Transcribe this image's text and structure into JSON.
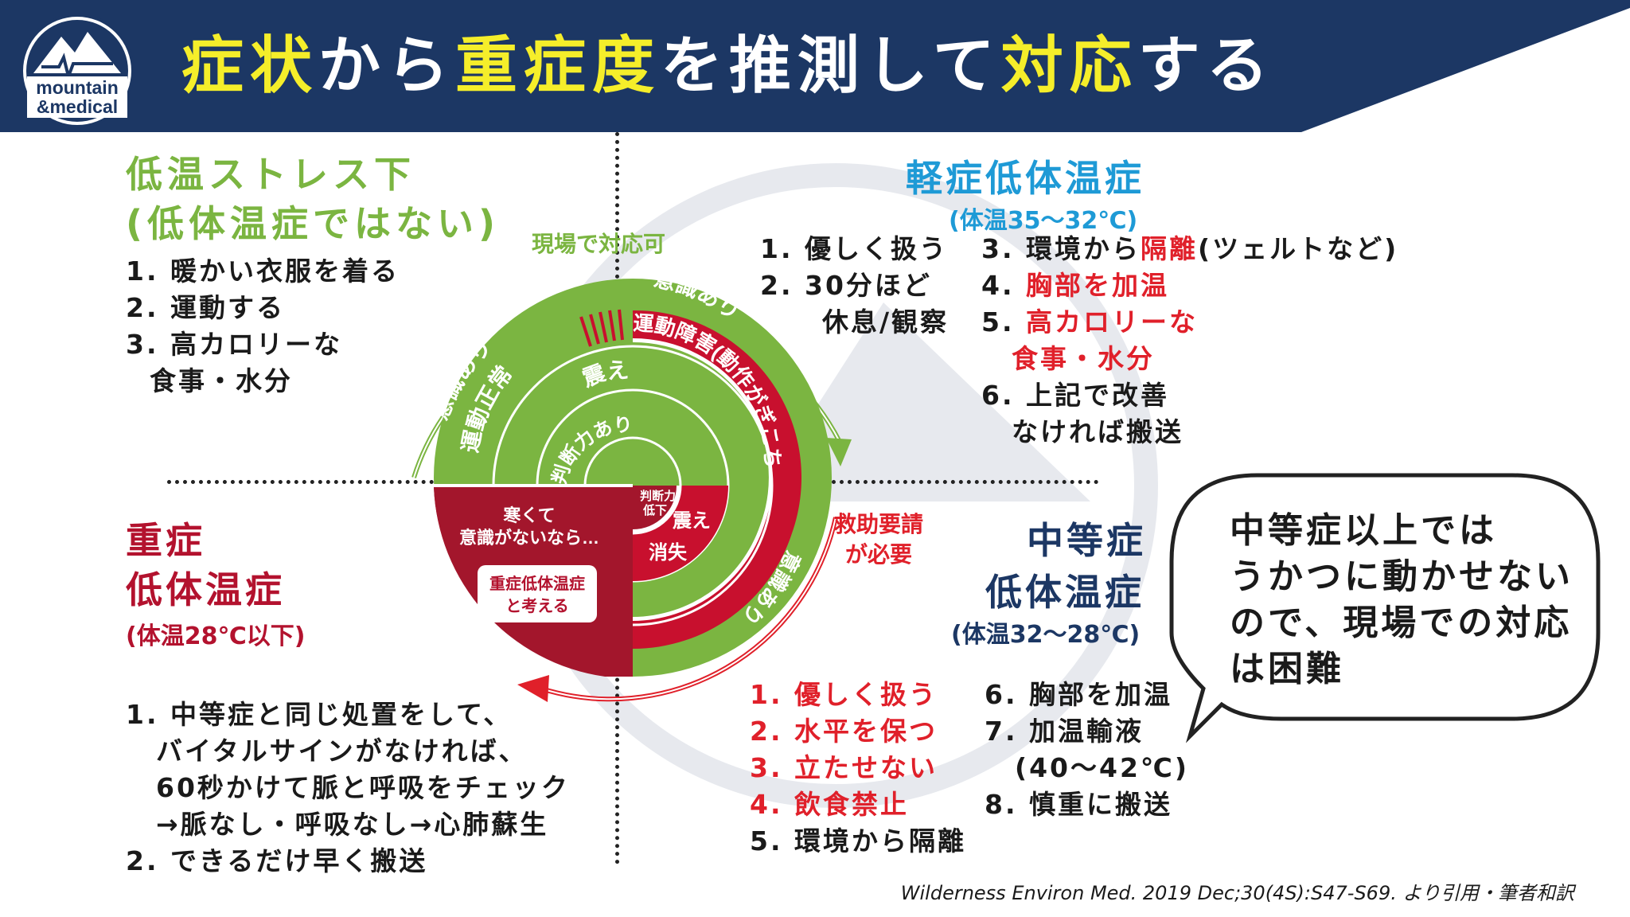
{
  "header": {
    "title_parts": [
      {
        "text": "症状",
        "hl": true
      },
      {
        "text": "から",
        "hl": false
      },
      {
        "text": "重症度",
        "hl": true
      },
      {
        "text": "を推測して",
        "hl": false
      },
      {
        "text": "対応",
        "hl": true
      },
      {
        "text": "する",
        "hl": false
      }
    ],
    "logo_line1": "mountain",
    "logo_line2": "&medical"
  },
  "colors": {
    "header_bg": "#1c3764",
    "title_highlight": "#f5ee2a",
    "green": "#7bb541",
    "blue": "#1e9ad6",
    "crimson": "#b3122e",
    "red": "#e0202a",
    "dark_red": "#a3162c"
  },
  "quadrants": {
    "cold_stress": {
      "title_line1": "低温ストレス下",
      "title_line2": "(低体温症ではない)",
      "items": [
        "1. 暖かい衣服を着る",
        "2. 運動する",
        "3. 高カロリーな",
        "食事・水分"
      ]
    },
    "mild": {
      "title": "軽症低体温症",
      "subtitle": "(体温35〜32℃)",
      "col1": [
        "1. 優しく扱う",
        "2. 30分ほど",
        "休息/観察"
      ],
      "col2_item3_prefix": "3. 環境から",
      "col2_item3_red": "隔離",
      "col2_item3_suffix": "(ツェルトなど)",
      "col2_item4_num": "4. ",
      "col2_item4_red": "胸部を加温",
      "col2_item5_num": "5. ",
      "col2_item5_red": "高カロリーな",
      "col2_item5_red2": "食事・水分",
      "col2_item6": "6. 上記で改善",
      "col2_item6b": "なければ搬送"
    },
    "severe": {
      "title_line1": "重症",
      "title_line2": "低体温症",
      "subtitle": "(体温28℃以下)",
      "items": [
        "1. 中等症と同じ処置をして、",
        "バイタルサインがなければ、",
        "60秒かけて脈と呼吸をチェック",
        "→脈なし・呼吸なし→心肺蘇生",
        "2. できるだけ早く搬送"
      ]
    },
    "moderate": {
      "title_line1": "中等症",
      "title_line2": "低体温症",
      "subtitle": "(体温32〜28℃)",
      "col1_red": [
        "1. 優しく扱う",
        "2. 水平を保つ",
        "3. 立たせない",
        "4. 飲食禁止"
      ],
      "col1_black": "5. 環境から隔離",
      "col2": [
        "6. 胸部を加温",
        "7. 加温輸液",
        "(40〜42℃)",
        "8. 慎重に搬送"
      ]
    }
  },
  "diagram": {
    "arrow_top_label": "現場で対応可",
    "arrow_bottom_label_1": "救助要請",
    "arrow_bottom_label_2": "が必要",
    "outer_left": "意識あり",
    "outer_right": "意識あり",
    "outer_lower": "意識あり",
    "middle_left": "運動正常",
    "middle_right": "運動障害(動作がぎこちない)",
    "inner_top": "震え",
    "inner_mid": "判断力あり",
    "inner_small_1": "判断力",
    "inner_small_2": "低下",
    "inner_right_1": "震え",
    "inner_right_2": "消失",
    "severe_line1": "寒くて",
    "severe_line2": "意識がないなら…",
    "severe_box_1": "重症低体温症",
    "severe_box_2": "と考える"
  },
  "bubble": {
    "lines": [
      "中等症以上では",
      "うかつに動かせない",
      "ので、現場での対応",
      "は困難"
    ]
  },
  "citation": "Wilderness Environ Med. 2019 Dec;30(4S):S47-S69. より引用・筆者和訳"
}
